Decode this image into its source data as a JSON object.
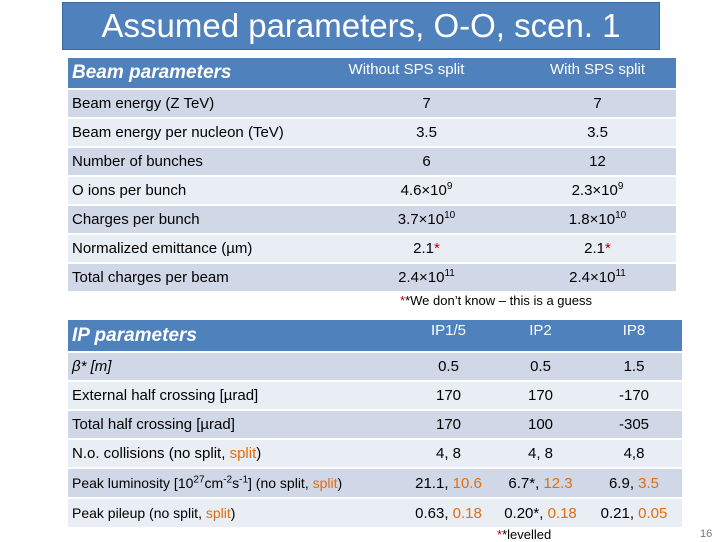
{
  "title": "Assumed parameters, O-O, scen. 1",
  "beam": {
    "header": [
      "Beam parameters",
      "Without SPS split",
      "With SPS split"
    ],
    "rows": [
      {
        "label": "Beam energy (Z TeV)",
        "a": "7",
        "b": "7"
      },
      {
        "label": "Beam energy per nucleon (TeV)",
        "a": "3.5",
        "b": "3.5"
      },
      {
        "label": "Number of bunches",
        "a": "6",
        "b": "12"
      },
      {
        "label": "O ions per bunch",
        "a": "4.6×10",
        "a_exp": "9",
        "b": "2.3×10",
        "b_exp": "9"
      },
      {
        "label": "Charges per bunch",
        "a": "3.7×10",
        "a_exp": "10",
        "b": "1.8×10",
        "b_exp": "10"
      },
      {
        "label": "Normalized emittance (µm)",
        "a": "2.1",
        "a_star": "*",
        "b": "2.1",
        "b_star": "*"
      },
      {
        "label": "Total charges per beam",
        "a": "2.4×10",
        "a_exp": "11",
        "b": "2.4×10",
        "b_exp": "11"
      }
    ],
    "note": "*We don’t know – this is a guess"
  },
  "ip": {
    "header": [
      "IP parameters",
      "IP1/5",
      "IP2",
      "IP8"
    ],
    "beta_label": "β* [m]",
    "beta": [
      "0.5",
      "0.5",
      "1.5"
    ],
    "xing_ext_label": "External half crossing  [µrad]",
    "xing_ext": [
      "170",
      "170",
      "-170"
    ],
    "xing_tot_label": "Total half crossing [µrad]",
    "xing_tot": [
      "170",
      "100",
      "-305"
    ],
    "coll": {
      "pre": "N.o. collisions (no split, ",
      "split": "split",
      "post": ")",
      "v1": "4, 8",
      "v2": "4, 8",
      "v3": "4,8"
    },
    "lumi": {
      "pre": "Peak luminosity [10",
      "e1": "27",
      "mid1": "cm",
      "e2": "-2",
      "mid2": "s",
      "e3": "-1",
      "mid3": "] (no split, ",
      "split": "split",
      "post": ")",
      "v1a": "21.1, ",
      "v1b": "10.6",
      "v2a": "6.7*, ",
      "v2b": "12.3",
      "v3a": "6.9, ",
      "v3b": "3.5"
    },
    "pileup": {
      "pre": "Peak pileup (no split, ",
      "split": "split",
      "post": ")",
      "v1a": "0.63, ",
      "v1b": "0.18",
      "v2a": "0.20*, ",
      "v2b": "0.18",
      "v3a": "0.21, ",
      "v3b": "0.05"
    },
    "note": "*levelled"
  },
  "page_number": "16",
  "colors": {
    "header": "#4f81bd",
    "row_dark": "#d0d8e8",
    "row_light": "#e9edf4",
    "red": "#c00000",
    "orange": "#e46c0a"
  }
}
